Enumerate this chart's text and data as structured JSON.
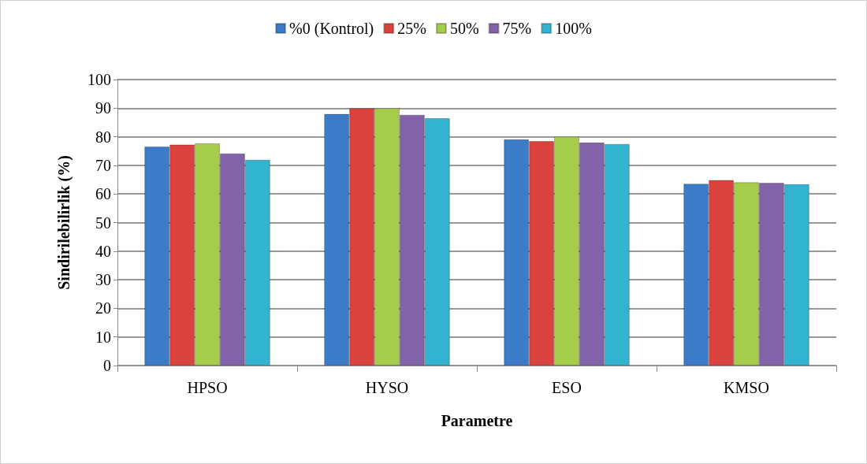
{
  "chart_data": {
    "type": "bar",
    "xlabel": "Parametre",
    "ylabel": "Sindirilebilirlik (%)",
    "categories": [
      "HPSO",
      "HYSO",
      "ESO",
      "KMSO"
    ],
    "series": [
      {
        "name": "%0 (Kontrol)",
        "color": "#3c7bc8",
        "values": [
          76.6,
          88.0,
          79.1,
          63.6
        ]
      },
      {
        "name": "25%",
        "color": "#d9423d",
        "values": [
          77.3,
          90.0,
          78.5,
          64.9
        ]
      },
      {
        "name": "50%",
        "color": "#a5cc4b",
        "values": [
          77.7,
          90.0,
          80.1,
          64.1
        ]
      },
      {
        "name": "75%",
        "color": "#8262a8",
        "values": [
          74.2,
          87.7,
          78.0,
          63.9
        ]
      },
      {
        "name": "100%",
        "color": "#32b4d0",
        "values": [
          72.0,
          86.5,
          77.5,
          63.4
        ]
      }
    ],
    "ylim": [
      0,
      100
    ],
    "yticks": [
      0,
      10,
      20,
      30,
      40,
      50,
      60,
      70,
      80,
      90,
      100
    ],
    "grid": "y",
    "legend": "top"
  }
}
